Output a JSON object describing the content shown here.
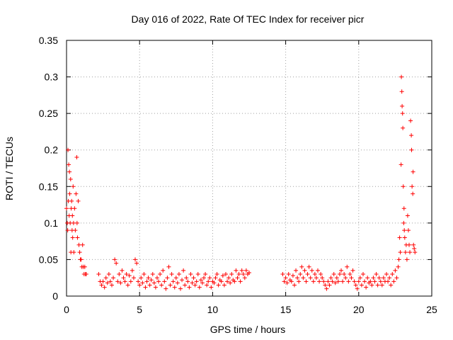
{
  "chart_data": {
    "type": "scatter",
    "title": "Day 016 of 2022, Rate Of TEC Index for receiver picr",
    "xlabel": "GPS time / hours",
    "ylabel": "ROTI / TECUs",
    "xlim": [
      0,
      25
    ],
    "ylim": [
      0,
      0.35
    ],
    "x_ticks": [
      0,
      5,
      10,
      15,
      20,
      25
    ],
    "x_tick_labels": [
      "0",
      "5",
      "10",
      "15",
      "20",
      "25"
    ],
    "y_ticks": [
      0,
      0.05,
      0.1,
      0.15,
      0.2,
      0.25,
      0.3,
      0.35
    ],
    "y_tick_labels": [
      "0",
      "0.05",
      "0.1",
      "0.15",
      "0.2",
      "0.25",
      "0.3",
      "0.35"
    ],
    "grid": true,
    "marker": "plus",
    "color": "#ff0000",
    "series": [
      {
        "points": [
          [
            0.0,
            0.12
          ],
          [
            0.05,
            0.1
          ],
          [
            0.08,
            0.09
          ],
          [
            0.1,
            0.2
          ],
          [
            0.12,
            0.13
          ],
          [
            0.15,
            0.18
          ],
          [
            0.18,
            0.11
          ],
          [
            0.2,
            0.17
          ],
          [
            0.22,
            0.14
          ],
          [
            0.25,
            0.1
          ],
          [
            0.28,
            0.16
          ],
          [
            0.3,
            0.06
          ],
          [
            0.32,
            0.12
          ],
          [
            0.35,
            0.13
          ],
          [
            0.38,
            0.09
          ],
          [
            0.4,
            0.11
          ],
          [
            0.42,
            0.08
          ],
          [
            0.45,
            0.15
          ],
          [
            0.48,
            0.1
          ],
          [
            0.5,
            0.06
          ],
          [
            0.55,
            0.12
          ],
          [
            0.6,
            0.09
          ],
          [
            0.65,
            0.14
          ],
          [
            0.7,
            0.19
          ],
          [
            0.72,
            0.1
          ],
          [
            0.75,
            0.08
          ],
          [
            0.8,
            0.13
          ],
          [
            0.85,
            0.07
          ],
          [
            0.9,
            0.06
          ],
          [
            0.95,
            0.05
          ],
          [
            1.0,
            0.05
          ],
          [
            1.05,
            0.04
          ],
          [
            1.1,
            0.07
          ],
          [
            1.15,
            0.04
          ],
          [
            1.2,
            0.03
          ],
          [
            1.25,
            0.04
          ],
          [
            1.3,
            0.03
          ],
          [
            1.35,
            0.03
          ],
          [
            2.2,
            0.03
          ],
          [
            2.3,
            0.02
          ],
          [
            2.4,
            0.015
          ],
          [
            2.5,
            0.02
          ],
          [
            2.6,
            0.012
          ],
          [
            2.7,
            0.025
          ],
          [
            2.8,
            0.018
          ],
          [
            2.9,
            0.03
          ],
          [
            3.0,
            0.02
          ],
          [
            3.1,
            0.015
          ],
          [
            3.2,
            0.025
          ],
          [
            3.3,
            0.05
          ],
          [
            3.4,
            0.045
          ],
          [
            3.5,
            0.02
          ],
          [
            3.6,
            0.03
          ],
          [
            3.7,
            0.018
          ],
          [
            3.8,
            0.035
          ],
          [
            3.9,
            0.025
          ],
          [
            4.0,
            0.02
          ],
          [
            4.1,
            0.03
          ],
          [
            4.2,
            0.015
          ],
          [
            4.3,
            0.028
          ],
          [
            4.4,
            0.02
          ],
          [
            4.5,
            0.035
          ],
          [
            4.6,
            0.025
          ],
          [
            4.7,
            0.05
          ],
          [
            4.8,
            0.045
          ],
          [
            4.9,
            0.02
          ],
          [
            5.0,
            0.015
          ],
          [
            5.1,
            0.025
          ],
          [
            5.2,
            0.018
          ],
          [
            5.3,
            0.03
          ],
          [
            5.4,
            0.012
          ],
          [
            5.5,
            0.02
          ],
          [
            5.6,
            0.025
          ],
          [
            5.7,
            0.015
          ],
          [
            5.8,
            0.022
          ],
          [
            5.9,
            0.03
          ],
          [
            6.0,
            0.018
          ],
          [
            6.1,
            0.012
          ],
          [
            6.2,
            0.025
          ],
          [
            6.3,
            0.02
          ],
          [
            6.4,
            0.03
          ],
          [
            6.5,
            0.015
          ],
          [
            6.6,
            0.035
          ],
          [
            6.7,
            0.02
          ],
          [
            6.8,
            0.01
          ],
          [
            6.9,
            0.025
          ],
          [
            7.0,
            0.04
          ],
          [
            7.1,
            0.015
          ],
          [
            7.2,
            0.03
          ],
          [
            7.3,
            0.02
          ],
          [
            7.4,
            0.012
          ],
          [
            7.5,
            0.025
          ],
          [
            7.6,
            0.018
          ],
          [
            7.7,
            0.03
          ],
          [
            7.8,
            0.01
          ],
          [
            7.9,
            0.022
          ],
          [
            8.0,
            0.035
          ],
          [
            8.1,
            0.015
          ],
          [
            8.2,
            0.025
          ],
          [
            8.3,
            0.02
          ],
          [
            8.4,
            0.012
          ],
          [
            8.5,
            0.03
          ],
          [
            8.6,
            0.018
          ],
          [
            8.7,
            0.025
          ],
          [
            8.8,
            0.015
          ],
          [
            8.9,
            0.02
          ],
          [
            9.0,
            0.03
          ],
          [
            9.1,
            0.012
          ],
          [
            9.2,
            0.022
          ],
          [
            9.3,
            0.018
          ],
          [
            9.4,
            0.025
          ],
          [
            9.5,
            0.03
          ],
          [
            9.6,
            0.015
          ],
          [
            9.7,
            0.02
          ],
          [
            9.8,
            0.025
          ],
          [
            9.9,
            0.012
          ],
          [
            10.0,
            0.02
          ],
          [
            10.1,
            0.018
          ],
          [
            10.2,
            0.025
          ],
          [
            10.3,
            0.03
          ],
          [
            10.4,
            0.015
          ],
          [
            10.5,
            0.022
          ],
          [
            10.6,
            0.02
          ],
          [
            10.7,
            0.028
          ],
          [
            10.8,
            0.015
          ],
          [
            10.9,
            0.03
          ],
          [
            11.0,
            0.02
          ],
          [
            11.1,
            0.025
          ],
          [
            11.2,
            0.018
          ],
          [
            11.3,
            0.03
          ],
          [
            11.4,
            0.022
          ],
          [
            11.5,
            0.02
          ],
          [
            11.6,
            0.035
          ],
          [
            11.7,
            0.025
          ],
          [
            11.8,
            0.03
          ],
          [
            11.9,
            0.02
          ],
          [
            12.0,
            0.035
          ],
          [
            12.1,
            0.03
          ],
          [
            12.2,
            0.025
          ],
          [
            12.3,
            0.035
          ],
          [
            12.4,
            0.03
          ],
          [
            12.5,
            0.032
          ],
          [
            14.8,
            0.03
          ],
          [
            14.9,
            0.02
          ],
          [
            15.0,
            0.025
          ],
          [
            15.1,
            0.018
          ],
          [
            15.2,
            0.03
          ],
          [
            15.3,
            0.022
          ],
          [
            15.4,
            0.02
          ],
          [
            15.5,
            0.028
          ],
          [
            15.6,
            0.015
          ],
          [
            15.7,
            0.035
          ],
          [
            15.8,
            0.025
          ],
          [
            15.9,
            0.02
          ],
          [
            16.0,
            0.03
          ],
          [
            16.1,
            0.04
          ],
          [
            16.2,
            0.025
          ],
          [
            16.3,
            0.035
          ],
          [
            16.4,
            0.02
          ],
          [
            16.5,
            0.03
          ],
          [
            16.6,
            0.04
          ],
          [
            16.7,
            0.025
          ],
          [
            16.8,
            0.035
          ],
          [
            16.9,
            0.02
          ],
          [
            17.0,
            0.03
          ],
          [
            17.1,
            0.025
          ],
          [
            17.2,
            0.035
          ],
          [
            17.3,
            0.02
          ],
          [
            17.4,
            0.03
          ],
          [
            17.5,
            0.025
          ],
          [
            17.6,
            0.02
          ],
          [
            17.7,
            0.015
          ],
          [
            17.8,
            0.01
          ],
          [
            17.9,
            0.02
          ],
          [
            18.0,
            0.015
          ],
          [
            18.1,
            0.025
          ],
          [
            18.2,
            0.02
          ],
          [
            18.3,
            0.03
          ],
          [
            18.4,
            0.018
          ],
          [
            18.5,
            0.025
          ],
          [
            18.6,
            0.02
          ],
          [
            18.7,
            0.03
          ],
          [
            18.8,
            0.035
          ],
          [
            18.9,
            0.02
          ],
          [
            19.0,
            0.03
          ],
          [
            19.1,
            0.025
          ],
          [
            19.2,
            0.04
          ],
          [
            19.3,
            0.02
          ],
          [
            19.4,
            0.03
          ],
          [
            19.5,
            0.025
          ],
          [
            19.6,
            0.035
          ],
          [
            19.7,
            0.02
          ],
          [
            19.8,
            0.015
          ],
          [
            19.9,
            0.01
          ],
          [
            20.0,
            0.02
          ],
          [
            20.1,
            0.025
          ],
          [
            20.2,
            0.015
          ],
          [
            20.3,
            0.03
          ],
          [
            20.4,
            0.02
          ],
          [
            20.5,
            0.012
          ],
          [
            20.6,
            0.025
          ],
          [
            20.7,
            0.018
          ],
          [
            20.8,
            0.02
          ],
          [
            20.9,
            0.015
          ],
          [
            21.0,
            0.025
          ],
          [
            21.1,
            0.02
          ],
          [
            21.2,
            0.03
          ],
          [
            21.3,
            0.015
          ],
          [
            21.4,
            0.025
          ],
          [
            21.5,
            0.02
          ],
          [
            21.6,
            0.015
          ],
          [
            21.7,
            0.025
          ],
          [
            21.8,
            0.02
          ],
          [
            21.9,
            0.03
          ],
          [
            22.0,
            0.02
          ],
          [
            22.1,
            0.025
          ],
          [
            22.2,
            0.015
          ],
          [
            22.3,
            0.03
          ],
          [
            22.4,
            0.02
          ],
          [
            22.5,
            0.035
          ],
          [
            22.6,
            0.025
          ],
          [
            22.7,
            0.04
          ],
          [
            22.75,
            0.05
          ],
          [
            22.8,
            0.08
          ],
          [
            22.85,
            0.06
          ],
          [
            22.9,
            0.18
          ],
          [
            22.92,
            0.3
          ],
          [
            22.95,
            0.28
          ],
          [
            22.97,
            0.26
          ],
          [
            23.0,
            0.25
          ],
          [
            23.02,
            0.23
          ],
          [
            23.05,
            0.15
          ],
          [
            23.08,
            0.1
          ],
          [
            23.1,
            0.12
          ],
          [
            23.12,
            0.09
          ],
          [
            23.15,
            0.08
          ],
          [
            23.2,
            0.06
          ],
          [
            23.25,
            0.07
          ],
          [
            23.3,
            0.05
          ],
          [
            23.35,
            0.11
          ],
          [
            23.4,
            0.09
          ],
          [
            23.45,
            0.07
          ],
          [
            23.5,
            0.06
          ],
          [
            23.55,
            0.24
          ],
          [
            23.6,
            0.22
          ],
          [
            23.62,
            0.2
          ],
          [
            23.65,
            0.15
          ],
          [
            23.7,
            0.14
          ],
          [
            23.72,
            0.17
          ],
          [
            23.75,
            0.07
          ],
          [
            23.8,
            0.065
          ],
          [
            23.85,
            0.06
          ]
        ]
      }
    ]
  }
}
